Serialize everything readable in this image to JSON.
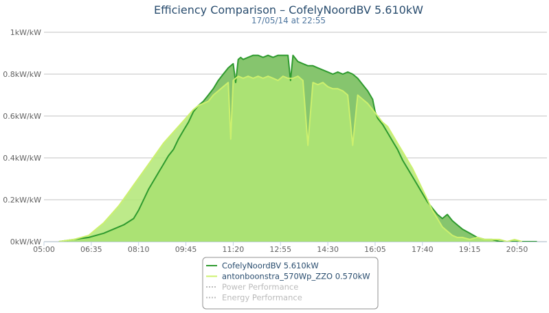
{
  "chart_data": {
    "type": "area",
    "title": "Efficiency Comparison – CofelyNoordBV 5.610kW",
    "subtitle": "17/05/14 at 22:55",
    "xlabel": "",
    "ylabel": "",
    "x_ticks": [
      "05:00",
      "06:35",
      "08:10",
      "09:45",
      "11:20",
      "12:55",
      "14:30",
      "16:05",
      "17:40",
      "19:15",
      "20:50"
    ],
    "y_ticks": [
      "0kW/kW",
      "0.2kW/kW",
      "0.4kW/kW",
      "0.6kW/kW",
      "0.8kW/kW",
      "1kW/kW"
    ],
    "xlim": [
      "05:00",
      "21:50"
    ],
    "ylim": [
      0,
      1
    ],
    "grid": true,
    "legend_position": "bottom-center",
    "series": [
      {
        "name": "CofelyNoordBV 5.610kW",
        "color": "#2e9a2e",
        "fill": "#86c56e",
        "x": [
          "05:30",
          "06:00",
          "06:30",
          "07:00",
          "07:20",
          "07:40",
          "08:00",
          "08:10",
          "08:20",
          "08:30",
          "08:40",
          "08:50",
          "09:00",
          "09:10",
          "09:20",
          "09:30",
          "09:40",
          "09:50",
          "10:00",
          "10:10",
          "10:20",
          "10:30",
          "10:40",
          "10:50",
          "11:00",
          "11:10",
          "11:20",
          "11:25",
          "11:30",
          "11:35",
          "11:40",
          "11:50",
          "12:00",
          "12:10",
          "12:20",
          "12:30",
          "12:40",
          "12:50",
          "13:00",
          "13:10",
          "13:15",
          "13:20",
          "13:30",
          "13:40",
          "13:50",
          "14:00",
          "14:10",
          "14:20",
          "14:30",
          "14:40",
          "14:50",
          "15:00",
          "15:10",
          "15:20",
          "15:30",
          "15:40",
          "15:50",
          "16:00",
          "16:05",
          "16:10",
          "16:20",
          "16:30",
          "16:40",
          "16:50",
          "17:00",
          "17:10",
          "17:20",
          "17:30",
          "17:40",
          "17:50",
          "18:00",
          "18:10",
          "18:20",
          "18:30",
          "18:40",
          "18:50",
          "19:00",
          "19:15",
          "19:30",
          "19:45",
          "20:00",
          "20:15",
          "20:30",
          "20:50",
          "21:10",
          "21:30"
        ],
        "values": [
          0.0,
          0.01,
          0.02,
          0.04,
          0.06,
          0.08,
          0.11,
          0.15,
          0.2,
          0.25,
          0.29,
          0.33,
          0.37,
          0.41,
          0.44,
          0.49,
          0.53,
          0.57,
          0.62,
          0.65,
          0.67,
          0.7,
          0.73,
          0.77,
          0.8,
          0.83,
          0.85,
          0.76,
          0.87,
          0.88,
          0.87,
          0.88,
          0.89,
          0.89,
          0.88,
          0.89,
          0.88,
          0.89,
          0.89,
          0.89,
          0.77,
          0.89,
          0.86,
          0.85,
          0.84,
          0.84,
          0.83,
          0.82,
          0.81,
          0.8,
          0.81,
          0.8,
          0.81,
          0.8,
          0.78,
          0.75,
          0.72,
          0.68,
          0.62,
          0.59,
          0.56,
          0.52,
          0.48,
          0.44,
          0.39,
          0.35,
          0.31,
          0.27,
          0.23,
          0.19,
          0.16,
          0.13,
          0.11,
          0.13,
          0.1,
          0.08,
          0.06,
          0.04,
          0.02,
          0.01,
          0.01,
          0.0,
          0.0,
          0.0,
          0.0,
          0.0
        ]
      },
      {
        "name": "antonboonstra_570Wp_ZZO 0.570kW",
        "color": "#ccf06e",
        "fill": "#b2e675",
        "x": [
          "05:30",
          "06:00",
          "06:30",
          "06:45",
          "07:00",
          "07:15",
          "07:30",
          "07:45",
          "08:00",
          "08:15",
          "08:30",
          "08:45",
          "09:00",
          "09:15",
          "09:30",
          "09:45",
          "10:00",
          "10:10",
          "10:20",
          "10:30",
          "10:40",
          "10:50",
          "11:00",
          "11:10",
          "11:15",
          "11:20",
          "11:25",
          "11:30",
          "11:40",
          "11:50",
          "12:00",
          "12:10",
          "12:20",
          "12:30",
          "12:40",
          "12:50",
          "13:00",
          "13:10",
          "13:20",
          "13:30",
          "13:40",
          "13:50",
          "14:00",
          "14:10",
          "14:20",
          "14:30",
          "14:40",
          "14:50",
          "15:00",
          "15:10",
          "15:20",
          "15:30",
          "15:40",
          "15:50",
          "16:00",
          "16:10",
          "16:20",
          "16:30",
          "16:40",
          "16:50",
          "17:00",
          "17:10",
          "17:20",
          "17:30",
          "17:40",
          "17:50",
          "18:00",
          "18:10",
          "18:20",
          "18:30",
          "18:40",
          "18:50",
          "19:00",
          "19:15",
          "19:30",
          "19:45",
          "20:00",
          "20:15",
          "20:30",
          "20:45",
          "21:00"
        ],
        "values": [
          0.0,
          0.01,
          0.03,
          0.06,
          0.09,
          0.13,
          0.17,
          0.22,
          0.27,
          0.32,
          0.37,
          0.42,
          0.47,
          0.51,
          0.55,
          0.59,
          0.63,
          0.65,
          0.66,
          0.67,
          0.7,
          0.72,
          0.74,
          0.76,
          0.49,
          0.77,
          0.78,
          0.79,
          0.78,
          0.79,
          0.78,
          0.79,
          0.78,
          0.79,
          0.78,
          0.77,
          0.79,
          0.78,
          0.78,
          0.79,
          0.77,
          0.46,
          0.76,
          0.75,
          0.76,
          0.74,
          0.73,
          0.73,
          0.72,
          0.7,
          0.46,
          0.7,
          0.68,
          0.66,
          0.63,
          0.6,
          0.57,
          0.55,
          0.51,
          0.47,
          0.43,
          0.39,
          0.35,
          0.3,
          0.25,
          0.2,
          0.15,
          0.11,
          0.07,
          0.05,
          0.03,
          0.02,
          0.02,
          0.01,
          0.02,
          0.01,
          0.01,
          0.01,
          0.0,
          0.01,
          0.0
        ]
      }
    ],
    "legend": [
      {
        "label": "CofelyNoordBV 5.610kW",
        "color": "#2e9a2e",
        "style": "solid",
        "active": true
      },
      {
        "label": "antonboonstra_570Wp_ZZO 0.570kW",
        "color": "#ccf06e",
        "style": "solid",
        "active": true
      },
      {
        "label": "Power Performance",
        "color": "#bbbbbb",
        "style": "dotted",
        "active": false
      },
      {
        "label": "Energy Performance",
        "color": "#bbbbbb",
        "style": "dotted",
        "active": false
      }
    ],
    "colors": {
      "grid": "#c0c0c0",
      "axis": "#c0d0e0",
      "inactive_text": "#bbbbbb",
      "active_text": "#274b6d",
      "legend_border": "#909090"
    }
  }
}
